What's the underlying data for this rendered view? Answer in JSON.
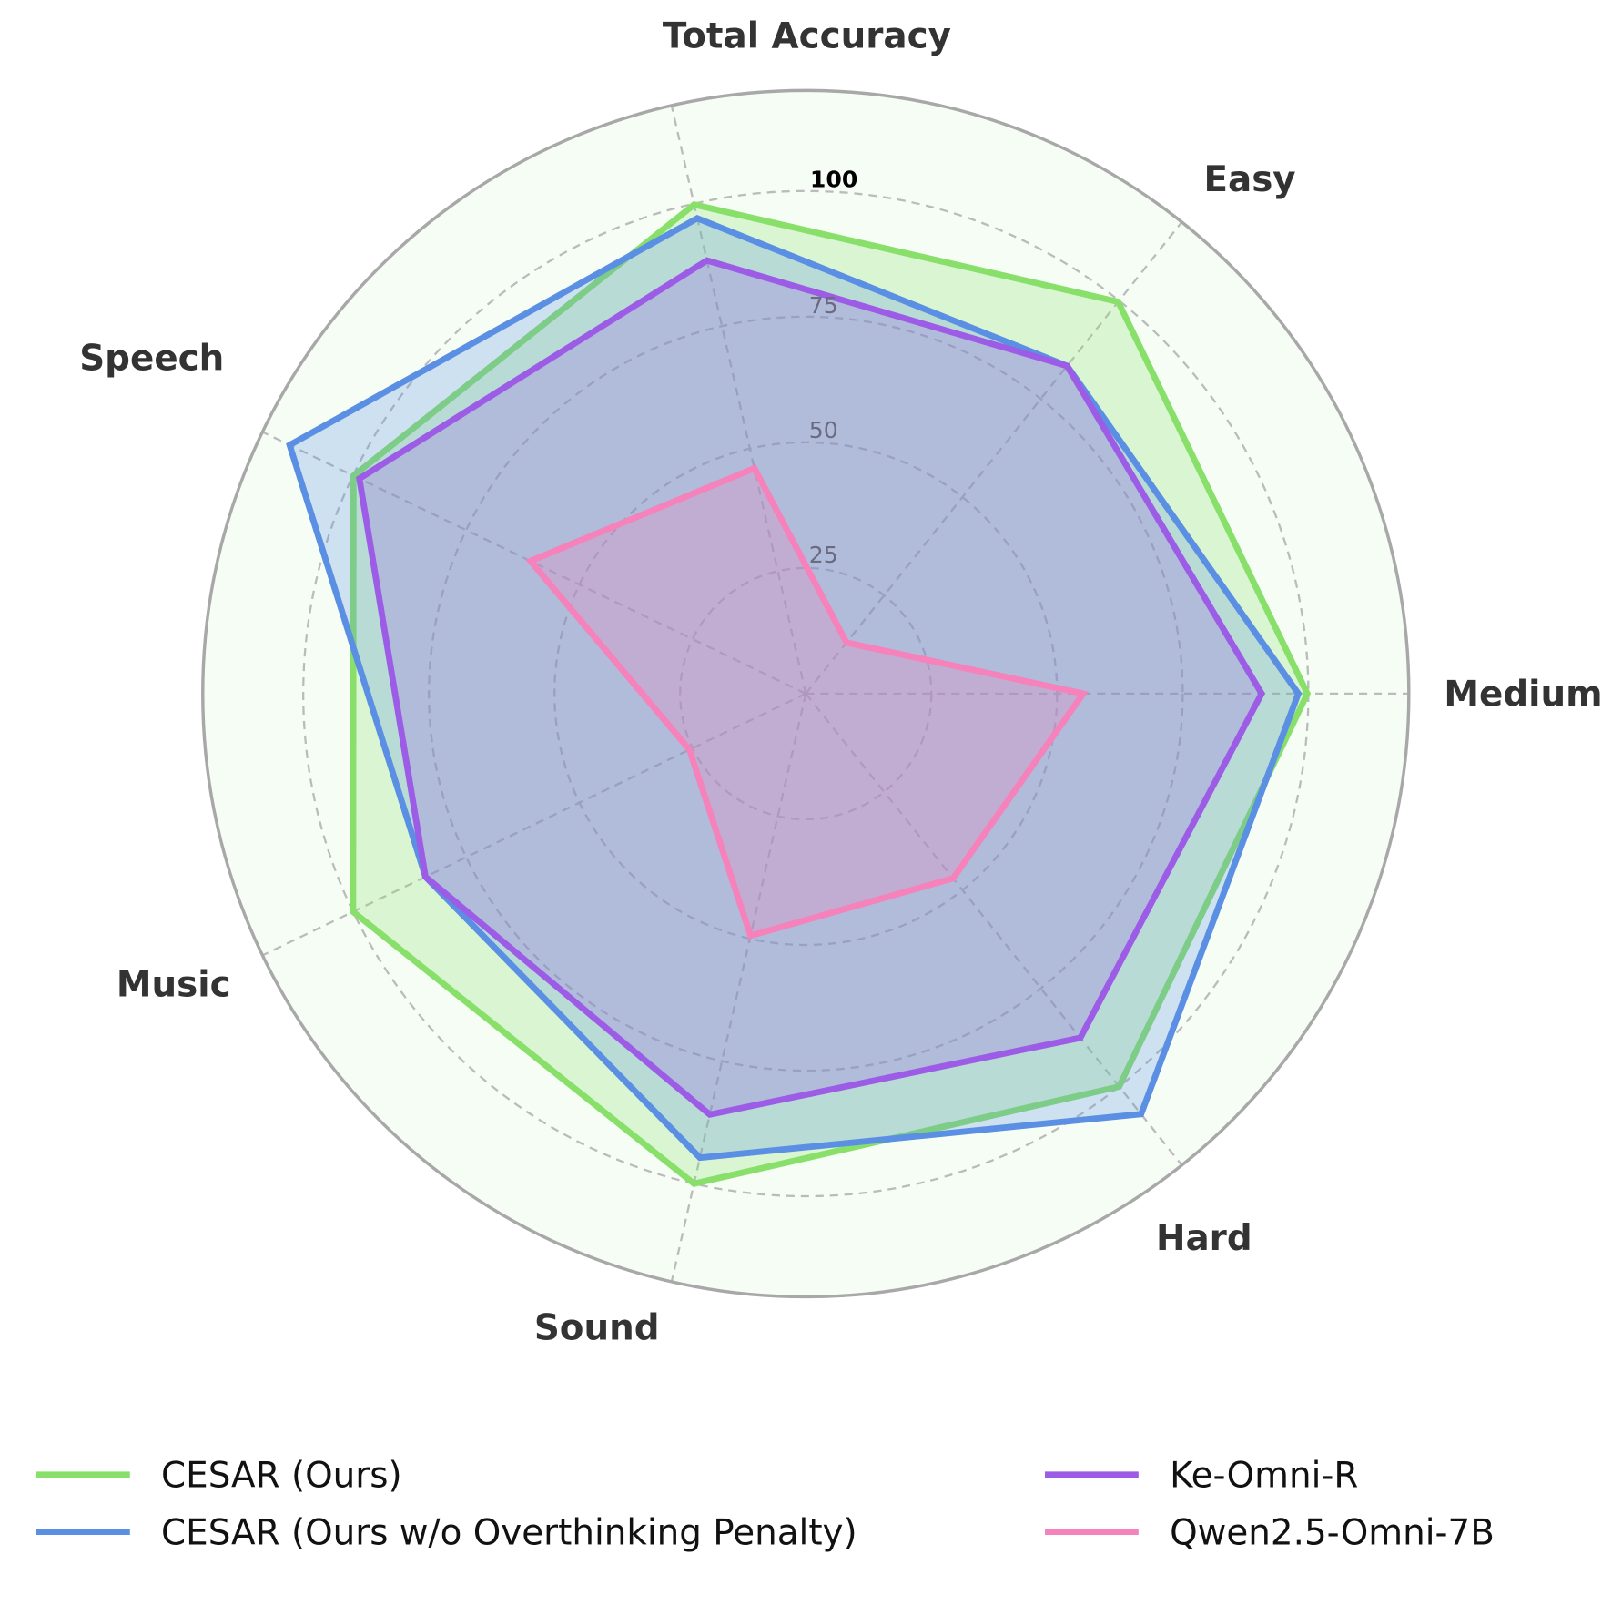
{
  "chart_data": {
    "type": "radar",
    "categories": [
      "Total Accuracy",
      "Easy",
      "Medium",
      "Hard",
      "Sound",
      "Music",
      "Speech"
    ],
    "radial_ticks": [
      "25",
      "50",
      "75",
      "100"
    ],
    "radial_tick_values": [
      25,
      50,
      75,
      100
    ],
    "rmax": 120,
    "grid": true,
    "legend_position": "bottom",
    "background_color": "#f5fdf5",
    "series": [
      {
        "name": "CESAR (Ours)",
        "color": "#88e06a",
        "values": [
          99.8,
          99.7,
          99.8,
          100,
          100,
          100,
          99.9
        ]
      },
      {
        "name": "CESAR (Ours w/o Overthinking Penalty)",
        "color": "#5b8fe3",
        "values": [
          97,
          83.4,
          98,
          107,
          94.7,
          84,
          114
        ]
      },
      {
        "name": "Ke-Omni-R",
        "color": "#9c5ce6",
        "values": [
          88.4,
          83.4,
          90.7,
          87.6,
          85.9,
          84,
          98.6
        ]
      },
      {
        "name": "Qwen2.5-Omni-7B",
        "color": "#f582bb",
        "values": [
          46,
          13,
          55.2,
          47,
          49.4,
          25.7,
          60.8
        ]
      }
    ]
  }
}
